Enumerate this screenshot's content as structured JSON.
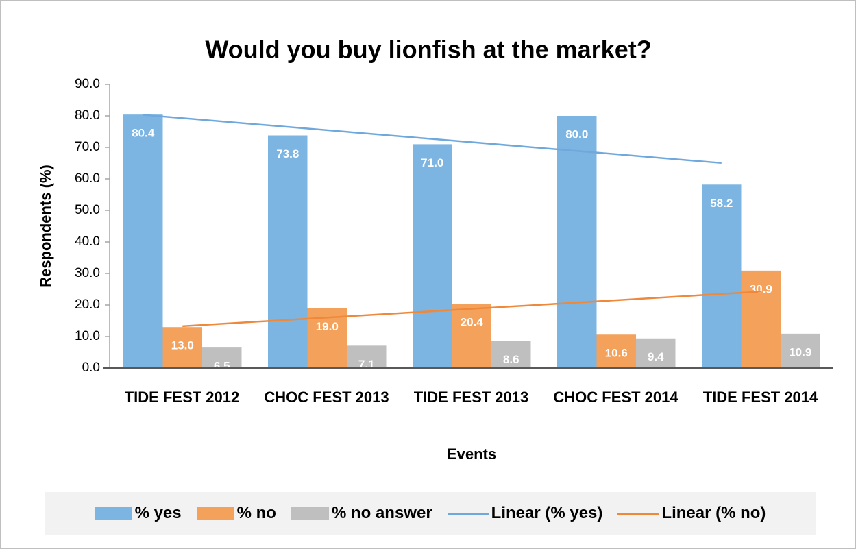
{
  "chart_data": {
    "type": "bar",
    "title": "Would you buy lionfish at the market?",
    "y_label": "Respondents (%)",
    "x_label": "Events",
    "categories": [
      "TIDE FEST 2012",
      "CHOC FEST 2013",
      "TIDE FEST 2013",
      "CHOC FEST 2014",
      "TIDE FEST 2014"
    ],
    "series": [
      {
        "name": "% yes",
        "color": "#7cb4e2",
        "values": [
          80.4,
          73.8,
          71.0,
          80.0,
          58.2
        ],
        "value_labels": [
          "80.4",
          "73.8",
          "71.0",
          "80.0",
          "58.2"
        ]
      },
      {
        "name": "% no",
        "color": "#f4a25b",
        "values": [
          13.0,
          19.0,
          20.4,
          10.6,
          30.9
        ],
        "value_labels": [
          "13.0",
          "19.0",
          "20.4",
          "10.6",
          "30.9"
        ]
      },
      {
        "name": "% no answer",
        "color": "#bfbfbf",
        "values": [
          6.5,
          7.1,
          8.6,
          9.4,
          10.9
        ],
        "value_labels": [
          "6.5",
          "7.1",
          "8.6",
          "9.4",
          "10.9"
        ]
      }
    ],
    "trendlines": [
      {
        "name": "Linear (% yes)",
        "series": 0,
        "color": "#6fa8dc"
      },
      {
        "name": "Linear (% no)",
        "series": 1,
        "color": "#f0883a"
      }
    ],
    "ylim": [
      0,
      90
    ],
    "yticks": [
      {
        "value": 0,
        "label": "0.0"
      },
      {
        "value": 10,
        "label": "10.0"
      },
      {
        "value": 20,
        "label": "20.0"
      },
      {
        "value": 30,
        "label": "30.0"
      },
      {
        "value": 40,
        "label": "40.0"
      },
      {
        "value": 50,
        "label": "50.0"
      },
      {
        "value": 60,
        "label": "60.0"
      },
      {
        "value": 70,
        "label": "70.0"
      },
      {
        "value": 80,
        "label": "80.0"
      },
      {
        "value": 90,
        "label": "90.0"
      }
    ],
    "grid": false
  }
}
